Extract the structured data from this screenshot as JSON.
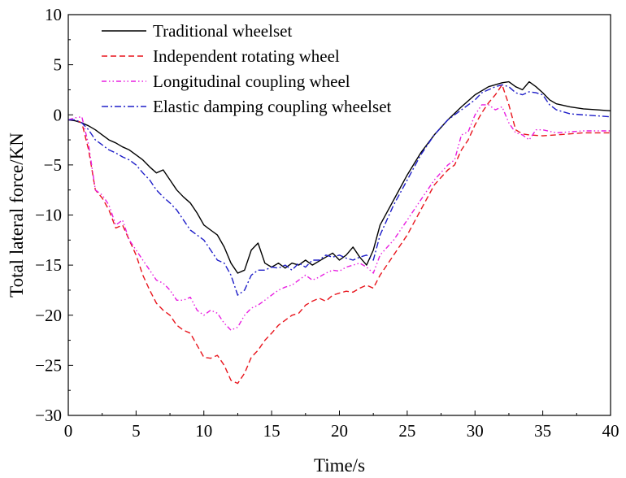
{
  "chart_data": {
    "type": "line",
    "xlabel": "Time/s",
    "ylabel": "Total lateral force/KN",
    "xlim": [
      0,
      40
    ],
    "ylim": [
      -30,
      10
    ],
    "xticks": [
      0,
      5,
      10,
      15,
      20,
      25,
      30,
      35,
      40
    ],
    "yticks": [
      10,
      5,
      0,
      -5,
      -10,
      -15,
      -20,
      -25,
      -30
    ],
    "grid": false,
    "legend_position": "top-left",
    "series": [
      {
        "name": "Traditional wheelset",
        "color": "#000000",
        "dash": "solid",
        "x": [
          0,
          0.5,
          1,
          1.5,
          2,
          2.5,
          3,
          3.5,
          4,
          4.5,
          5,
          5.5,
          6,
          6.5,
          7,
          7.5,
          8,
          8.5,
          9,
          9.5,
          10,
          10.5,
          11,
          11.5,
          12,
          12.5,
          13,
          13.5,
          14,
          14.5,
          15,
          15.5,
          16,
          16.5,
          17,
          17.5,
          18,
          18.5,
          19,
          19.5,
          20,
          20.5,
          21,
          21.5,
          22,
          22.5,
          23,
          24,
          25,
          26,
          27,
          28,
          29,
          30,
          31,
          32,
          32.5,
          33,
          33.5,
          34,
          34.5,
          35,
          35.5,
          36,
          37,
          38,
          39,
          40
        ],
        "values": [
          -0.5,
          -0.6,
          -0.8,
          -1.1,
          -1.5,
          -2.0,
          -2.5,
          -2.8,
          -3.2,
          -3.5,
          -4.0,
          -4.5,
          -5.2,
          -5.8,
          -5.5,
          -6.5,
          -7.5,
          -8.2,
          -8.8,
          -9.8,
          -11.0,
          -11.5,
          -12.0,
          -13.2,
          -14.8,
          -15.8,
          -15.5,
          -13.5,
          -12.8,
          -14.8,
          -15.2,
          -14.8,
          -15.3,
          -14.8,
          -15.0,
          -14.5,
          -15.0,
          -14.6,
          -14.2,
          -13.8,
          -14.5,
          -14.0,
          -13.2,
          -14.2,
          -15.0,
          -13.5,
          -11.0,
          -8.5,
          -6.0,
          -3.8,
          -2.0,
          -0.5,
          0.8,
          2.0,
          2.8,
          3.2,
          3.3,
          2.8,
          2.5,
          3.3,
          2.8,
          2.2,
          1.5,
          1.1,
          0.8,
          0.6,
          0.5,
          0.4
        ]
      },
      {
        "name": "Independent rotating wheel",
        "color": "#e8141c",
        "dash": "dashed",
        "x": [
          0,
          0.5,
          1,
          1.5,
          2,
          2.5,
          3,
          3.5,
          4,
          4.5,
          5,
          5.5,
          6,
          6.5,
          7,
          7.5,
          8,
          8.5,
          9,
          9.5,
          10,
          10.5,
          11,
          11.5,
          12,
          12.5,
          13,
          13.5,
          14,
          14.5,
          15,
          15.5,
          16,
          16.5,
          17,
          17.5,
          18,
          18.5,
          19,
          19.5,
          20,
          20.5,
          21,
          21.5,
          22,
          22.5,
          23,
          24,
          25,
          26,
          27,
          28,
          28.5,
          29,
          29.5,
          30,
          30.5,
          31,
          31.5,
          32,
          32.5,
          33,
          33.5,
          34,
          35,
          36,
          37,
          38,
          39,
          40
        ],
        "values": [
          -0.5,
          -0.5,
          -0.8,
          -3.5,
          -7.5,
          -8.3,
          -9.5,
          -11.3,
          -11.0,
          -12.5,
          -14.0,
          -16.0,
          -17.5,
          -18.8,
          -19.5,
          -20.0,
          -21.0,
          -21.5,
          -21.8,
          -23.0,
          -24.2,
          -24.3,
          -24.0,
          -25.0,
          -26.5,
          -26.8,
          -25.8,
          -24.2,
          -23.5,
          -22.5,
          -21.8,
          -21.0,
          -20.5,
          -20.0,
          -19.8,
          -19.0,
          -18.6,
          -18.3,
          -18.6,
          -18.0,
          -17.8,
          -17.6,
          -17.7,
          -17.3,
          -17.0,
          -17.3,
          -16.0,
          -14.0,
          -12.0,
          -9.5,
          -7.0,
          -5.5,
          -5.0,
          -3.5,
          -2.5,
          -1.0,
          0.2,
          1.2,
          2.0,
          3.0,
          1.0,
          -1.5,
          -1.9,
          -2.0,
          -2.1,
          -2.0,
          -1.9,
          -1.8,
          -1.8,
          -1.8
        ]
      },
      {
        "name": "Longitudinal coupling wheel",
        "color": "#e81ee0",
        "dash": "dashdotdot",
        "x": [
          0,
          0.5,
          1,
          1.5,
          2,
          2.5,
          3,
          3.5,
          4,
          4.5,
          5,
          5.5,
          6,
          6.5,
          7,
          7.5,
          8,
          8.5,
          9,
          9.5,
          10,
          10.5,
          11,
          11.5,
          12,
          12.5,
          13,
          13.5,
          14,
          14.5,
          15,
          15.5,
          16,
          16.5,
          17,
          17.5,
          18,
          18.5,
          19,
          19.5,
          20,
          20.5,
          21,
          21.5,
          22,
          22.5,
          23,
          24,
          25,
          26,
          27,
          28,
          28.5,
          29,
          29.5,
          30,
          30.5,
          31,
          31.5,
          32,
          32.5,
          33,
          33.5,
          34,
          34.5,
          35,
          36,
          37,
          38,
          39,
          40
        ],
        "values": [
          -0.5,
          -0.3,
          -0.2,
          -3.0,
          -7.5,
          -8.0,
          -9.0,
          -11.0,
          -10.5,
          -12.5,
          -13.5,
          -14.5,
          -15.5,
          -16.5,
          -16.8,
          -17.5,
          -18.5,
          -18.5,
          -18.2,
          -19.5,
          -20.0,
          -19.5,
          -19.8,
          -20.8,
          -21.5,
          -21.2,
          -20.0,
          -19.3,
          -19.0,
          -18.5,
          -18.0,
          -17.5,
          -17.2,
          -17.0,
          -16.5,
          -16.0,
          -16.5,
          -16.2,
          -15.8,
          -15.5,
          -15.6,
          -15.2,
          -15.0,
          -14.8,
          -15.2,
          -15.8,
          -14.0,
          -12.5,
          -10.5,
          -8.5,
          -6.5,
          -5.0,
          -4.5,
          -2.0,
          -1.7,
          0.0,
          1.0,
          1.0,
          0.5,
          0.8,
          -0.8,
          -1.8,
          -2.0,
          -2.5,
          -1.5,
          -1.5,
          -1.8,
          -1.7,
          -1.6,
          -1.6,
          -1.6
        ]
      },
      {
        "name": "Elastic damping coupling wheelset",
        "color": "#1e1ec8",
        "dash": "dashdot",
        "x": [
          0,
          0.5,
          1,
          1.5,
          2,
          2.5,
          3,
          3.5,
          4,
          4.5,
          5,
          5.5,
          6,
          6.5,
          7,
          7.5,
          8,
          8.5,
          9,
          9.5,
          10,
          10.5,
          11,
          11.5,
          12,
          12.5,
          13,
          13.5,
          14,
          14.5,
          15,
          15.5,
          16,
          16.5,
          17,
          17.5,
          18,
          18.5,
          19,
          19.5,
          20,
          20.5,
          21,
          21.5,
          22,
          22.5,
          23,
          24,
          25,
          26,
          27,
          28,
          29,
          30,
          30.5,
          31,
          31.5,
          32,
          32.5,
          33,
          33.5,
          34,
          34.5,
          35,
          35.5,
          36,
          37,
          38,
          39,
          40
        ],
        "values": [
          -0.5,
          -0.5,
          -0.8,
          -1.5,
          -2.5,
          -3.0,
          -3.5,
          -3.8,
          -4.2,
          -4.5,
          -5.0,
          -5.8,
          -6.5,
          -7.5,
          -8.2,
          -8.8,
          -9.5,
          -10.5,
          -11.5,
          -12.0,
          -12.5,
          -13.5,
          -14.5,
          -14.8,
          -16.0,
          -18.0,
          -17.5,
          -16.0,
          -15.5,
          -15.5,
          -15.2,
          -15.3,
          -15.0,
          -15.5,
          -14.8,
          -15.2,
          -14.5,
          -14.5,
          -14.0,
          -14.2,
          -14.0,
          -14.3,
          -14.5,
          -14.2,
          -14.0,
          -14.5,
          -12.0,
          -9.0,
          -6.5,
          -4.0,
          -2.0,
          -0.5,
          0.5,
          1.5,
          2.2,
          2.5,
          2.8,
          3.0,
          2.8,
          2.2,
          2.0,
          2.3,
          2.2,
          2.0,
          1.0,
          0.5,
          0.1,
          0.0,
          -0.1,
          -0.2
        ]
      }
    ]
  }
}
